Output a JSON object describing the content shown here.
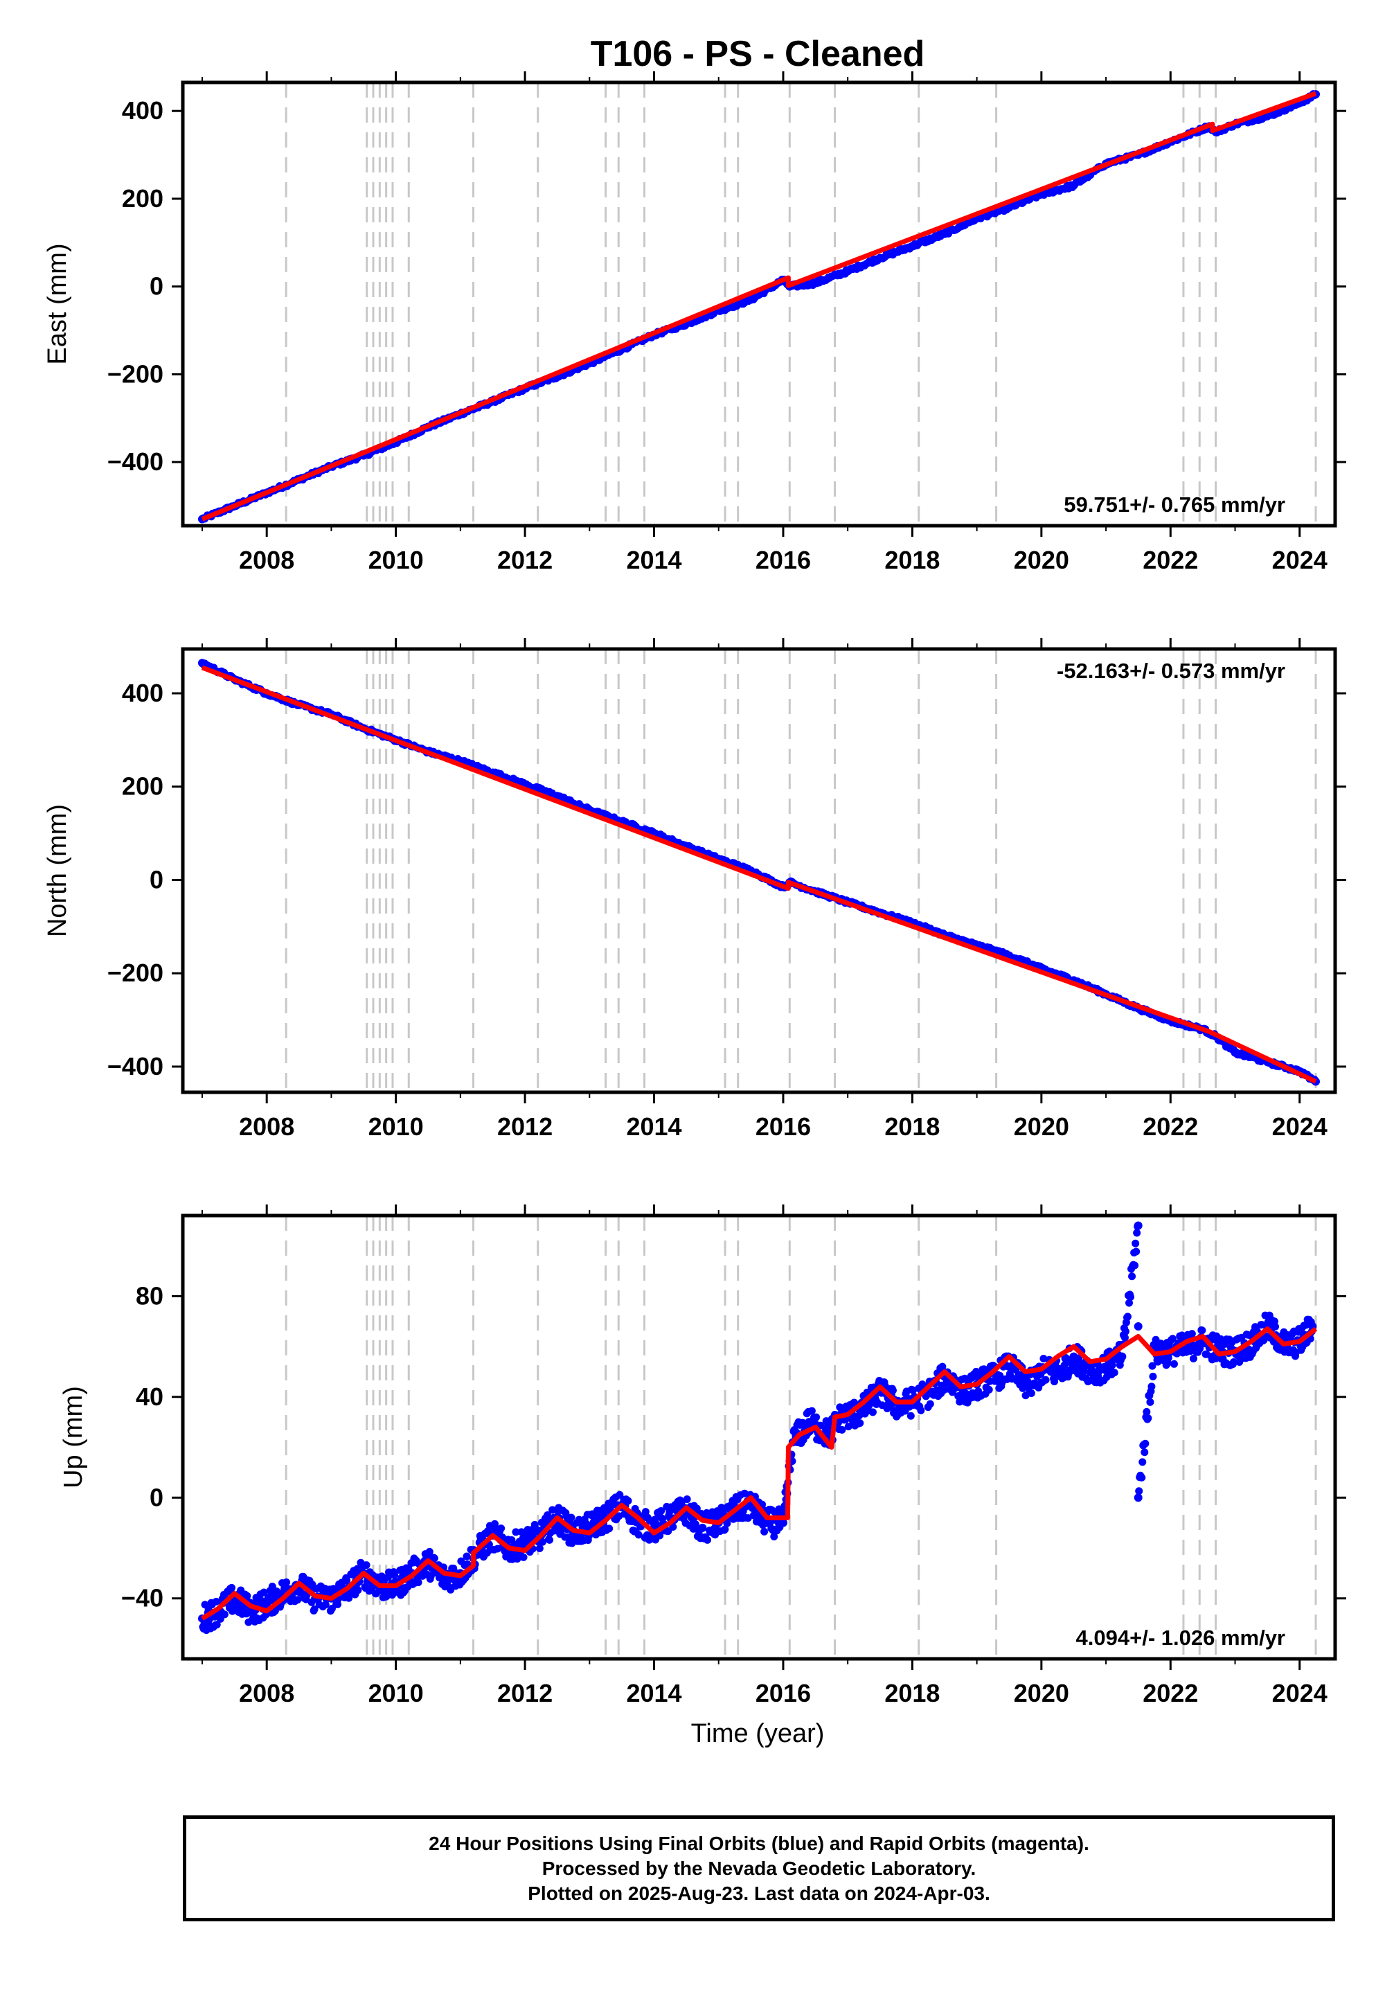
{
  "title": "T106  - PS - Cleaned",
  "x_axis_label": "Time (year)",
  "x_tick_labels": [
    "2008",
    "2010",
    "2012",
    "2014",
    "2016",
    "2018",
    "2020",
    "2022",
    "2024"
  ],
  "footer": {
    "lines": [
      "24 Hour Positions Using Final Orbits (blue) and Rapid Orbits (magenta).",
      "Processed by the Nevada Geodetic Laboratory.",
      "Plotted on 2025-Aug-23. Last data on 2024-Apr-03."
    ]
  },
  "colors": {
    "data_points": "#0000ff",
    "model_line": "#ff0000",
    "event_lines": "#c8c8c8",
    "frame": "#000000"
  },
  "chart_data": [
    {
      "type": "scatter",
      "title": "T106  - PS - Cleaned",
      "ylabel": "East (mm)",
      "xlabel": "",
      "xlim": [
        2006.7,
        2024.55
      ],
      "ylim": [
        -545,
        465
      ],
      "yticks": [
        -400,
        -200,
        0,
        200,
        400
      ],
      "ytick_labels": [
        "−400",
        "−200",
        "0",
        "200",
        "400"
      ],
      "xticks": [
        2008,
        2010,
        2012,
        2014,
        2016,
        2018,
        2020,
        2022,
        2024
      ],
      "rate_label": "59.751+/- 0.765 mm/yr",
      "rate_position": "bottom-right",
      "event_lines": [
        2008.3,
        2009.55,
        2009.65,
        2009.75,
        2009.85,
        2009.95,
        2010.2,
        2011.2,
        2012.2,
        2013.25,
        2013.45,
        2013.85,
        2015.1,
        2015.3,
        2016.1,
        2016.8,
        2018.1,
        2019.3,
        2022.2,
        2022.45,
        2022.7,
        2024.25
      ],
      "series": [
        {
          "name": "Final Orbits",
          "kind": "points",
          "x": [
            2007.0,
            2007.5,
            2008.0,
            2008.5,
            2009.0,
            2009.5,
            2010.0,
            2010.5,
            2011.0,
            2011.5,
            2012.0,
            2012.5,
            2013.0,
            2013.5,
            2014.0,
            2014.5,
            2015.0,
            2015.5,
            2016.0,
            2016.1,
            2016.5,
            2017.0,
            2017.5,
            2018.0,
            2018.5,
            2019.0,
            2019.5,
            2020.0,
            2020.5,
            2021.0,
            2021.5,
            2022.0,
            2022.6,
            2022.7,
            2023.0,
            2023.5,
            2024.0,
            2024.25
          ],
          "y": [
            -530,
            -500,
            -470,
            -440,
            -410,
            -385,
            -355,
            -320,
            -290,
            -262,
            -232,
            -205,
            -175,
            -143,
            -110,
            -85,
            -55,
            -30,
            15,
            0,
            8,
            35,
            65,
            92,
            120,
            155,
            180,
            210,
            230,
            280,
            300,
            330,
            365,
            352,
            370,
            388,
            418,
            438
          ]
        },
        {
          "name": "Model",
          "kind": "line",
          "x": [
            2007.0,
            2016.08,
            2016.08,
            2022.65,
            2022.65,
            2024.25
          ],
          "y": [
            -530,
            20,
            2,
            370,
            355,
            440
          ]
        }
      ]
    },
    {
      "type": "scatter",
      "ylabel": "North (mm)",
      "xlabel": "",
      "xlim": [
        2006.7,
        2024.55
      ],
      "ylim": [
        -455,
        495
      ],
      "yticks": [
        -400,
        -200,
        0,
        200,
        400
      ],
      "ytick_labels": [
        "−400",
        "−200",
        "0",
        "200",
        "400"
      ],
      "xticks": [
        2008,
        2010,
        2012,
        2014,
        2016,
        2018,
        2020,
        2022,
        2024
      ],
      "rate_label": "-52.163+/- 0.573 mm/yr",
      "rate_position": "top-right",
      "event_lines": [
        2008.3,
        2009.55,
        2009.65,
        2009.75,
        2009.85,
        2009.95,
        2010.2,
        2011.2,
        2012.2,
        2013.25,
        2013.45,
        2013.85,
        2015.1,
        2015.3,
        2016.1,
        2016.8,
        2018.1,
        2019.3,
        2022.2,
        2022.45,
        2022.7,
        2024.25
      ],
      "series": [
        {
          "name": "Final Orbits",
          "kind": "points",
          "x": [
            2007.0,
            2007.5,
            2008.0,
            2008.5,
            2009.0,
            2009.5,
            2010.0,
            2010.5,
            2011.0,
            2011.5,
            2012.0,
            2012.5,
            2013.0,
            2013.5,
            2014.0,
            2014.5,
            2015.0,
            2015.5,
            2016.0,
            2016.1,
            2016.5,
            2017.0,
            2017.5,
            2018.0,
            2018.5,
            2019.0,
            2019.5,
            2020.0,
            2020.5,
            2021.0,
            2021.5,
            2022.0,
            2022.5,
            2022.7,
            2023.0,
            2023.5,
            2024.0,
            2024.25
          ],
          "y": [
            465,
            430,
            400,
            375,
            355,
            325,
            300,
            275,
            255,
            230,
            205,
            180,
            150,
            125,
            100,
            72,
            45,
            20,
            -15,
            -5,
            -25,
            -48,
            -70,
            -92,
            -118,
            -140,
            -162,
            -190,
            -215,
            -245,
            -275,
            -302,
            -320,
            -335,
            -370,
            -390,
            -410,
            -432
          ]
        },
        {
          "name": "Model",
          "kind": "line",
          "x": [
            2007.0,
            2016.08,
            2016.08,
            2022.6,
            2024.25
          ],
          "y": [
            455,
            -18,
            -5,
            -325,
            -432
          ]
        }
      ]
    },
    {
      "type": "scatter",
      "ylabel": "Up (mm)",
      "xlabel": "Time (year)",
      "xlim": [
        2006.7,
        2024.55
      ],
      "ylim": [
        -64,
        112
      ],
      "yticks": [
        -40,
        0,
        40,
        80
      ],
      "ytick_labels": [
        "−40",
        "0",
        "40",
        "80"
      ],
      "xticks": [
        2008,
        2010,
        2012,
        2014,
        2016,
        2018,
        2020,
        2022,
        2024
      ],
      "rate_label": "4.094+/- 1.026 mm/yr",
      "rate_position": "bottom-right",
      "event_lines": [
        2008.3,
        2009.55,
        2009.65,
        2009.75,
        2009.85,
        2009.95,
        2010.2,
        2011.2,
        2012.2,
        2013.25,
        2013.45,
        2013.85,
        2015.1,
        2015.3,
        2016.1,
        2016.8,
        2018.1,
        2019.3,
        2022.2,
        2022.45,
        2022.7,
        2024.25
      ],
      "series": [
        {
          "name": "Final Orbits",
          "kind": "points",
          "x": [
            2007.0,
            2007.25,
            2007.5,
            2007.75,
            2008.0,
            2008.25,
            2008.5,
            2008.75,
            2009.0,
            2009.25,
            2009.5,
            2009.75,
            2010.0,
            2010.25,
            2010.5,
            2010.75,
            2011.0,
            2011.25,
            2011.5,
            2011.75,
            2012.0,
            2012.25,
            2012.5,
            2012.75,
            2013.0,
            2013.25,
            2013.5,
            2013.75,
            2014.0,
            2014.25,
            2014.5,
            2014.75,
            2015.0,
            2015.25,
            2015.5,
            2015.75,
            2016.0,
            2016.15,
            2016.4,
            2016.7,
            2016.9,
            2017.2,
            2017.5,
            2017.8,
            2018.0,
            2018.3,
            2018.5,
            2018.8,
            2019.0,
            2019.3,
            2019.5,
            2019.8,
            2020.0,
            2020.3,
            2020.5,
            2020.8,
            2021.0,
            2021.25,
            2021.5,
            2021.5,
            2021.5,
            2021.75,
            2022.0,
            2022.3,
            2022.5,
            2022.8,
            2023.0,
            2023.3,
            2023.5,
            2023.8,
            2024.0,
            2024.2
          ],
          "y": [
            -48,
            -45,
            -40,
            -45,
            -42,
            -38,
            -35,
            -40,
            -40,
            -36,
            -30,
            -35,
            -35,
            -30,
            -26,
            -32,
            -30,
            -22,
            -15,
            -20,
            -18,
            -15,
            -8,
            -14,
            -12,
            -8,
            -3,
            -10,
            -12,
            -8,
            -5,
            -12,
            -10,
            -5,
            -3,
            -10,
            -10,
            22,
            30,
            25,
            32,
            34,
            42,
            36,
            38,
            42,
            48,
            42,
            45,
            48,
            52,
            44,
            50,
            50,
            56,
            50,
            52,
            56,
            108,
            68,
            0,
            58,
            58,
            60,
            62,
            58,
            58,
            62,
            68,
            60,
            62,
            68
          ]
        },
        {
          "name": "Model",
          "kind": "line",
          "x": [
            2007.0,
            2007.25,
            2007.5,
            2007.75,
            2008.0,
            2008.25,
            2008.5,
            2008.75,
            2009.0,
            2009.25,
            2009.5,
            2009.75,
            2010.0,
            2010.25,
            2010.5,
            2010.75,
            2011.0,
            2011.2,
            2011.2,
            2011.5,
            2011.75,
            2012.0,
            2012.25,
            2012.5,
            2012.75,
            2013.0,
            2013.25,
            2013.5,
            2013.75,
            2014.0,
            2014.25,
            2014.5,
            2014.75,
            2015.0,
            2015.25,
            2015.5,
            2015.75,
            2016.07,
            2016.08,
            2016.25,
            2016.5,
            2016.75,
            2016.8,
            2017.0,
            2017.25,
            2017.5,
            2017.75,
            2018.0,
            2018.25,
            2018.5,
            2018.75,
            2019.0,
            2019.25,
            2019.5,
            2019.75,
            2020.0,
            2020.25,
            2020.5,
            2020.75,
            2021.0,
            2021.25,
            2021.5,
            2021.75,
            2022.0,
            2022.25,
            2022.5,
            2022.75,
            2023.0,
            2023.25,
            2023.5,
            2023.75,
            2024.0,
            2024.25
          ],
          "y": [
            -48,
            -44,
            -38,
            -43,
            -45,
            -40,
            -34,
            -39,
            -40,
            -36,
            -30,
            -35,
            -35,
            -31,
            -25,
            -30,
            -31,
            -27,
            -22,
            -15,
            -20,
            -21,
            -15,
            -8,
            -13,
            -14,
            -9,
            -3,
            -8,
            -14,
            -10,
            -4,
            -9,
            -10,
            -5,
            0,
            -8,
            -8,
            20,
            25,
            28,
            20,
            32,
            33,
            38,
            44,
            38,
            38,
            44,
            50,
            44,
            45,
            50,
            56,
            50,
            51,
            56,
            60,
            54,
            55,
            60,
            64,
            57,
            58,
            62,
            64,
            57,
            58,
            62,
            67,
            61,
            62,
            67
          ]
        }
      ]
    }
  ]
}
